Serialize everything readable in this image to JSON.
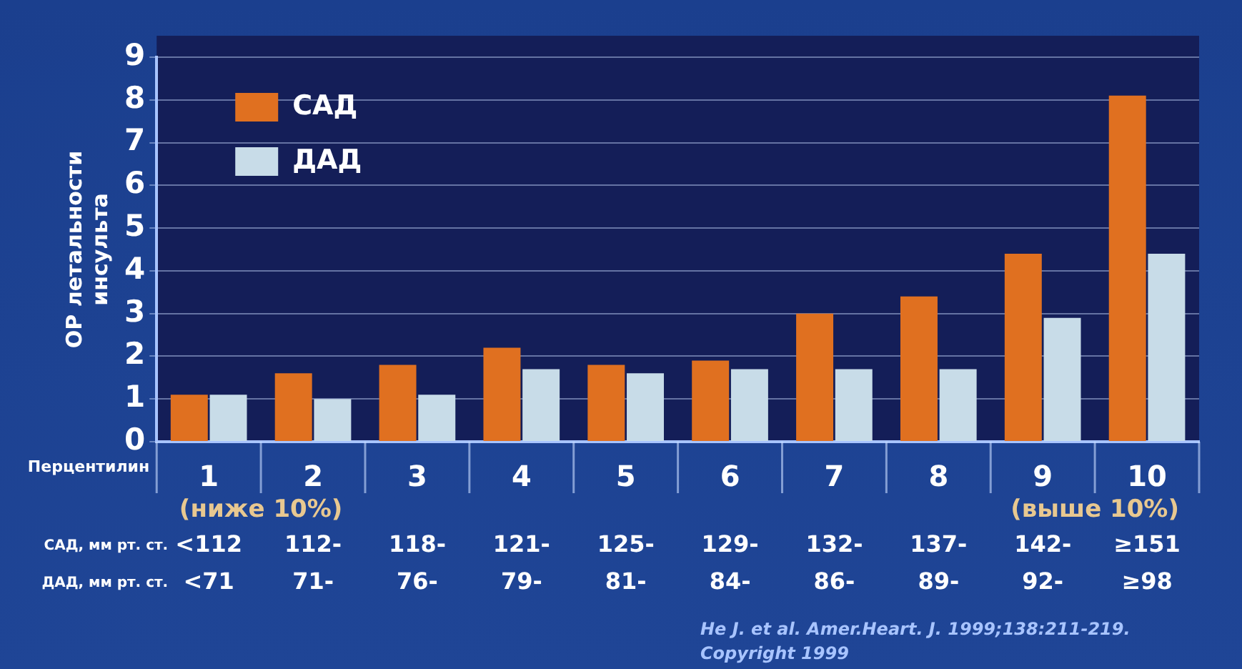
{
  "chart_data": {
    "type": "bar",
    "ylabel": "ОР летальности инсульта",
    "xlabel": "Перцентилин",
    "categories": [
      "1",
      "2",
      "3",
      "4",
      "5",
      "6",
      "7",
      "8",
      "9",
      "10"
    ],
    "series": [
      {
        "name": "САД",
        "color": "#e07020",
        "values": [
          1.1,
          1.6,
          1.8,
          2.2,
          1.8,
          1.9,
          3.0,
          3.4,
          4.4,
          8.1
        ]
      },
      {
        "name": "ДАД",
        "color": "#c8dce8",
        "values": [
          1.1,
          1.0,
          1.1,
          1.7,
          1.6,
          1.7,
          1.7,
          1.7,
          2.9,
          4.4
        ]
      }
    ],
    "ylim": [
      0,
      9
    ],
    "yticks": [
      0,
      1,
      2,
      3,
      4,
      5,
      6,
      7,
      8,
      9
    ],
    "grid": "y",
    "legend": "top left",
    "annotations": [
      "(ниже 10%)",
      "(выше 10%)",
      "САД, мм рт. ст.",
      "ДАД, мм рт. ст.",
      "He J. et al. Amer.Heart. J. 1999;138:211-219.",
      "Copyright 1999",
      "<112",
      "<71",
      "112-",
      "71-",
      "118-",
      "76-",
      "121-",
      "79-",
      "125-",
      "81-",
      "129-",
      "84-",
      "132-",
      "86-",
      "137-",
      "89-",
      "142-",
      "92-",
      "≥151",
      "≥98"
    ]
  }
}
